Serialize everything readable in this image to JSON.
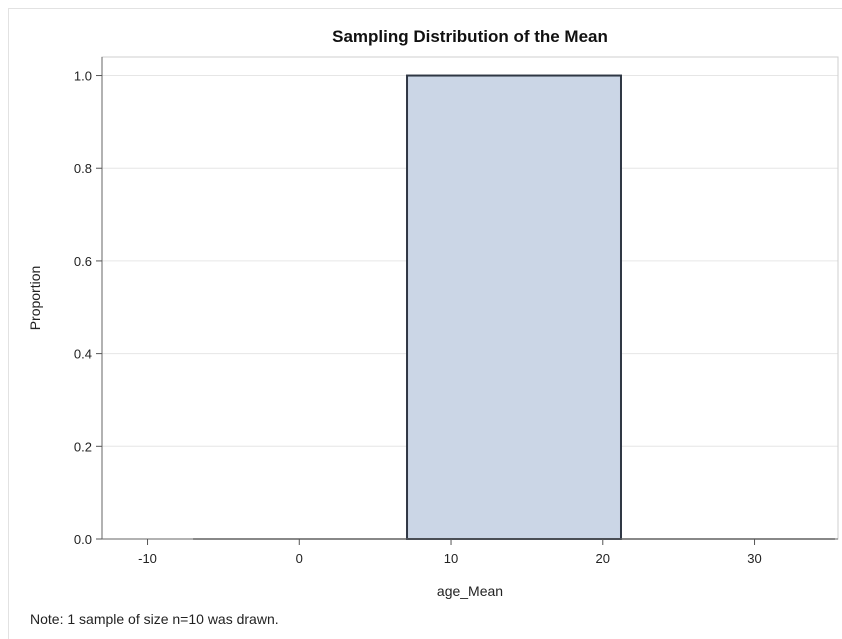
{
  "chart_data": {
    "type": "bar",
    "title": "Sampling Distribution of the Mean",
    "xlabel": "age_Mean",
    "ylabel": "Proportion",
    "xlim": [
      -13,
      35.5
    ],
    "ylim": [
      0,
      1.04
    ],
    "x_ticks": [
      "-10",
      "0",
      "10",
      "20",
      "30"
    ],
    "x_tick_values": [
      -10,
      0,
      10,
      20,
      30
    ],
    "y_ticks": [
      "0.0",
      "0.2",
      "0.4",
      "0.6",
      "0.8",
      "1.0"
    ],
    "y_tick_values": [
      0.0,
      0.2,
      0.4,
      0.6,
      0.8,
      1.0
    ],
    "grid": true,
    "bins": [
      {
        "start": -7,
        "end": 7.1,
        "value": 0.0
      },
      {
        "start": 7.1,
        "end": 21.2,
        "value": 1.0
      },
      {
        "start": 21.2,
        "end": 35.3,
        "value": 0.0
      }
    ],
    "bar_fill": "#cbd6e6",
    "bar_stroke": "#2f3744"
  },
  "note": "Note: 1 sample of size n=10 was drawn."
}
